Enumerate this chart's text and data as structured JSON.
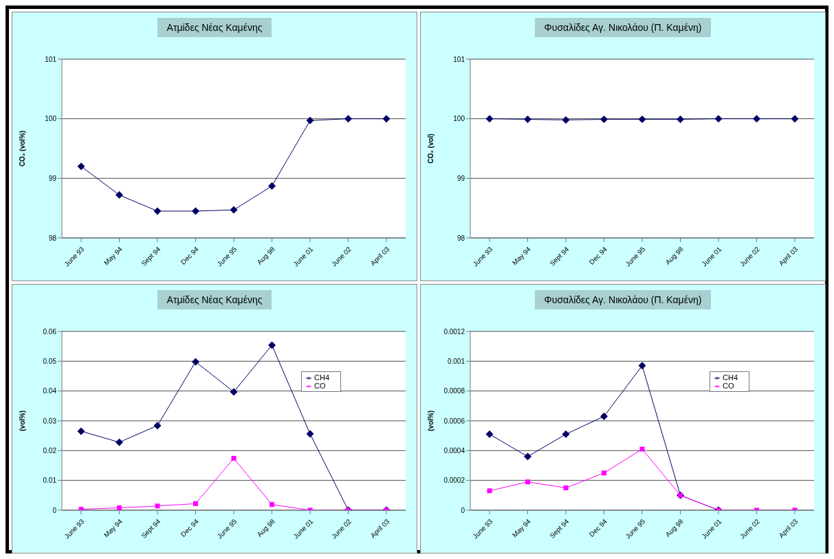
{
  "chart_data": [
    {
      "type": "line",
      "title": "Ατμίδες Νέας Καμένης",
      "ylabel": "CO₂ (vol%)",
      "categories": [
        "June 93",
        "May 94",
        "Sept 94",
        "Dec 94",
        "June 95",
        "Aug 98",
        "June 01",
        "June 02",
        "April 03"
      ],
      "series": [
        {
          "color": "#000066",
          "values": [
            99.2,
            98.72,
            98.45,
            98.45,
            98.47,
            98.87,
            99.97,
            100,
            100
          ]
        }
      ],
      "ylim": [
        98,
        101
      ],
      "yticks": [
        98,
        99,
        100,
        101
      ],
      "grid": "y",
      "marker": "diamond"
    },
    {
      "type": "line",
      "title": "Φυσαλίδες Αγ. Νικολάου (Π. Καμένη)",
      "ylabel": "CO₂ (vol)",
      "categories": [
        "June 93",
        "May 94",
        "Sept 94",
        "Dec 94",
        "June 95",
        "Aug 98",
        "June 01",
        "June 02",
        "April 03"
      ],
      "series": [
        {
          "color": "#000066",
          "values": [
            100,
            99.99,
            99.98,
            99.99,
            99.99,
            99.99,
            100,
            100,
            100
          ]
        }
      ],
      "ylim": [
        98,
        101
      ],
      "yticks": [
        98,
        99,
        100,
        101
      ],
      "grid": "y",
      "marker": "diamond"
    },
    {
      "type": "line",
      "title": "Ατμίδες Νέας Καμένης",
      "ylabel": "(vol%)",
      "categories": [
        "June 93",
        "May 94",
        "Sept 94",
        "Dec 94",
        "June 95",
        "Aug 98",
        "June 01",
        "June 02",
        "April 03"
      ],
      "series": [
        {
          "name": "CH4",
          "color": "#000066",
          "marker": "diamond",
          "values": [
            0.0265,
            0.0228,
            0.0284,
            0.0498,
            0.0397,
            0.0554,
            0.0256,
            0,
            0
          ]
        },
        {
          "name": "CO",
          "color": "#ff00ff",
          "marker": "square",
          "values": [
            0.0003,
            0.0008,
            0.0014,
            0.0022,
            0.0174,
            0.0019,
            0,
            0,
            0
          ]
        }
      ],
      "ylim": [
        0,
        0.06
      ],
      "yticks": [
        0,
        0.01,
        0.02,
        0.03,
        0.04,
        0.05,
        0.06
      ],
      "grid": "y",
      "legend": "top right"
    },
    {
      "type": "line",
      "title": "Φυσαλίδες Αγ. Νικολάου (Π. Καμένη)",
      "ylabel": "(vol%)",
      "categories": [
        "June 93",
        "May 94",
        "Sept 94",
        "Dec 94",
        "June 95",
        "Aug 98",
        "June 01",
        "June 02",
        "April 03"
      ],
      "series": [
        {
          "name": "CH4",
          "color": "#000066",
          "marker": "diamond",
          "values": [
            0.00051,
            0.00036,
            0.00051,
            0.00063,
            0.00097,
            0.0001,
            0,
            null,
            null
          ]
        },
        {
          "name": "CO",
          "color": "#ff00ff",
          "marker": "square",
          "values": [
            0.00013,
            0.00019,
            0.00015,
            0.00025,
            0.00041,
            0.0001,
            0,
            0,
            0
          ]
        }
      ],
      "ylim": [
        0,
        0.0012
      ],
      "yticks": [
        0,
        0.0002,
        0.0004,
        0.0006,
        0.0008,
        0.001,
        0.0012
      ],
      "grid": "y",
      "legend": "top right"
    }
  ]
}
